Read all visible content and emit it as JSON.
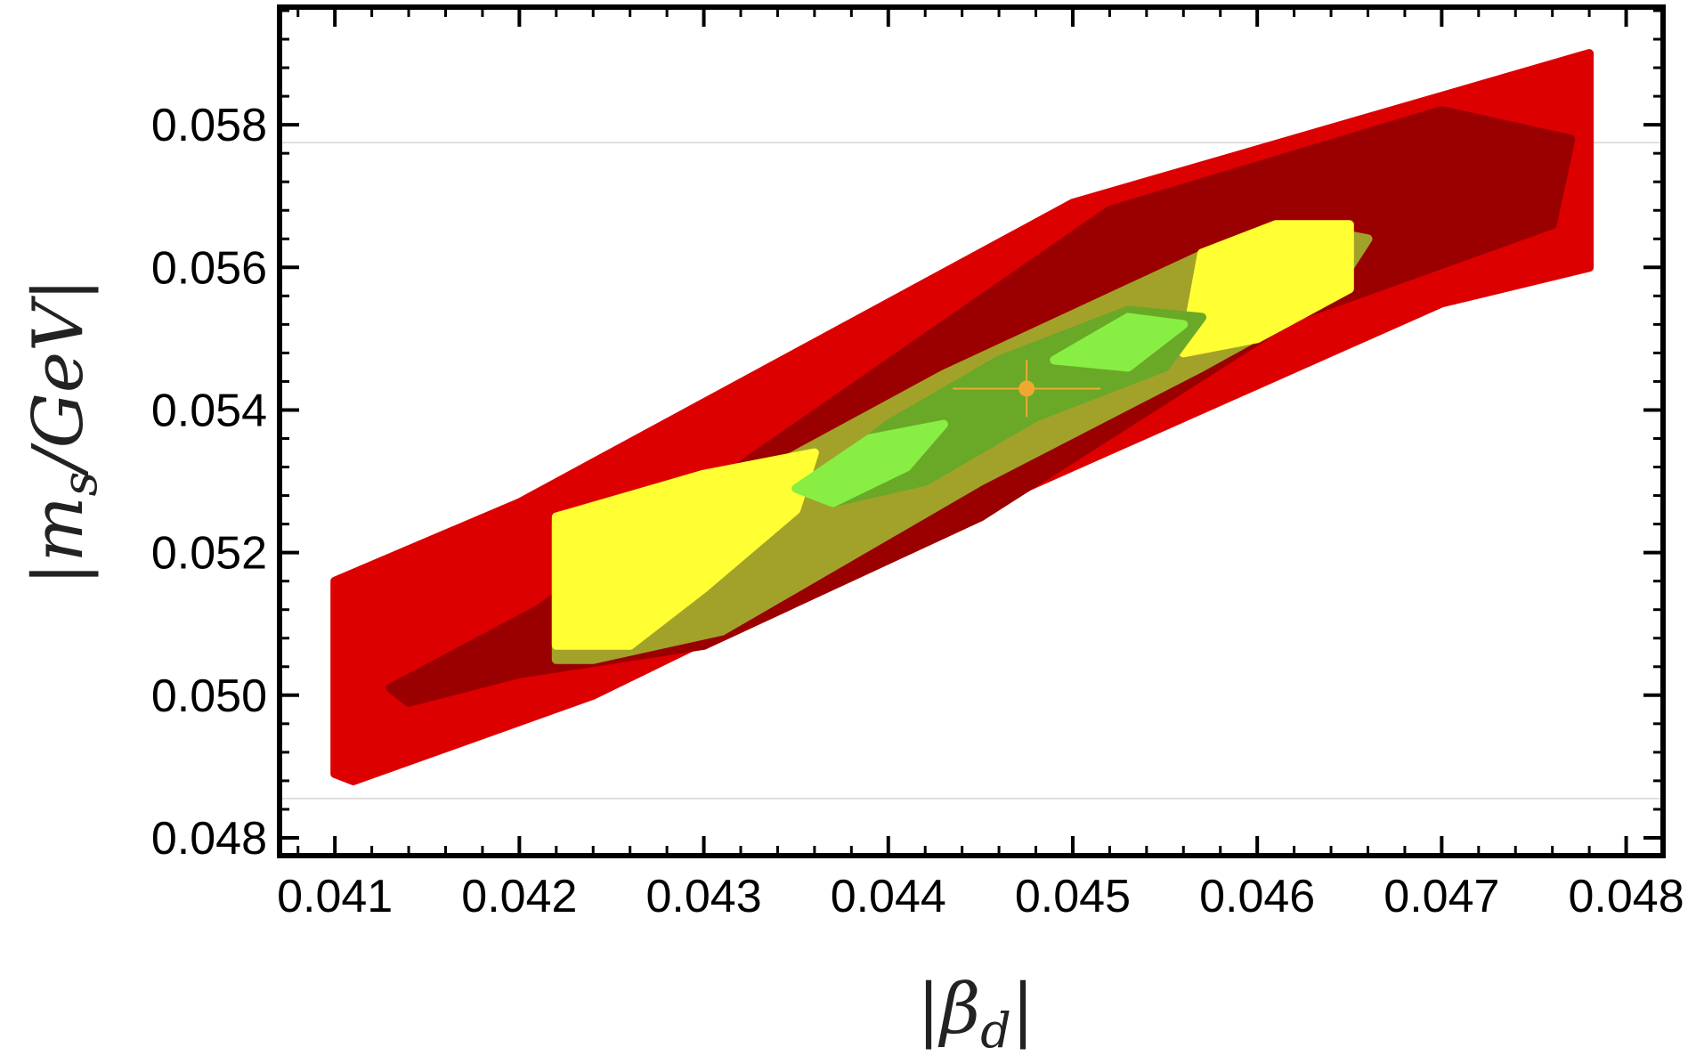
{
  "chart_data": {
    "type": "scatter",
    "xlabel": "|βd|",
    "ylabel": "|ms/GeV|",
    "xlabel_parts": {
      "pre": "|",
      "main": "β",
      "sub": "d",
      "post": "|"
    },
    "ylabel_parts": {
      "pre": "|",
      "main": "m",
      "sub": "s",
      "post": "/GeV|"
    },
    "xlim": [
      0.0407,
      0.0482
    ],
    "ylim": [
      0.04775,
      0.05965
    ],
    "xticks": [
      0.041,
      0.042,
      0.043,
      0.044,
      0.045,
      0.046,
      0.047,
      0.048
    ],
    "xtick_labels": [
      "0.041",
      "0.042",
      "0.043",
      "0.044",
      "0.045",
      "0.046",
      "0.047",
      "0.048"
    ],
    "yticks": [
      0.048,
      0.05,
      0.052,
      0.054,
      0.056,
      0.058
    ],
    "ytick_labels": [
      "0.048",
      "0.050",
      "0.052",
      "0.054",
      "0.056",
      "0.058"
    ],
    "reference_lines_y": [
      0.05775,
      0.04855
    ],
    "grid": false,
    "legend": "none",
    "regions": [
      {
        "color": "#dd0000",
        "polygon": [
          [
            0.041,
            0.0489
          ],
          [
            0.041,
            0.0516
          ],
          [
            0.042,
            0.0527
          ],
          [
            0.045,
            0.0569
          ],
          [
            0.0478,
            0.059
          ],
          [
            0.0478,
            0.056
          ],
          [
            0.047,
            0.0555
          ],
          [
            0.0443,
            0.0524
          ],
          [
            0.0424,
            0.05
          ],
          [
            0.0411,
            0.0488
          ]
        ]
      },
      {
        "color": "#9b0000",
        "polygon": [
          [
            0.0413,
            0.0501
          ],
          [
            0.0421,
            0.0512
          ],
          [
            0.0433,
            0.0534
          ],
          [
            0.0452,
            0.0568
          ],
          [
            0.047,
            0.0582
          ],
          [
            0.0477,
            0.0578
          ],
          [
            0.0476,
            0.0566
          ],
          [
            0.0462,
            0.0553
          ],
          [
            0.0445,
            0.0525
          ],
          [
            0.043,
            0.0507
          ],
          [
            0.042,
            0.0503
          ],
          [
            0.0414,
            0.0499
          ]
        ]
      },
      {
        "color": "#a2a22a",
        "polygon": [
          [
            0.0422,
            0.0505
          ],
          [
            0.0422,
            0.0524
          ],
          [
            0.0433,
            0.0531
          ],
          [
            0.0443,
            0.0545
          ],
          [
            0.0458,
            0.0563
          ],
          [
            0.0462,
            0.0566
          ],
          [
            0.0466,
            0.0564
          ],
          [
            0.0464,
            0.0556
          ],
          [
            0.0457,
            0.0546
          ],
          [
            0.0445,
            0.053
          ],
          [
            0.0431,
            0.0509
          ],
          [
            0.0424,
            0.0505
          ]
        ]
      },
      {
        "color": "#ffff33",
        "polygon": [
          [
            0.0422,
            0.0507
          ],
          [
            0.0422,
            0.0525
          ],
          [
            0.043,
            0.0531
          ],
          [
            0.0436,
            0.0534
          ],
          [
            0.0435,
            0.0526
          ],
          [
            0.043,
            0.0515
          ],
          [
            0.0426,
            0.0507
          ]
        ]
      },
      {
        "color": "#ffff33",
        "polygon": [
          [
            0.0456,
            0.0548
          ],
          [
            0.0457,
            0.0562
          ],
          [
            0.0461,
            0.0566
          ],
          [
            0.0465,
            0.0566
          ],
          [
            0.0465,
            0.0557
          ],
          [
            0.046,
            0.055
          ]
        ]
      },
      {
        "color": "#6aa828",
        "polygon": [
          [
            0.0436,
            0.053
          ],
          [
            0.044,
            0.0538
          ],
          [
            0.0446,
            0.0547
          ],
          [
            0.0453,
            0.0554
          ],
          [
            0.0457,
            0.0553
          ],
          [
            0.0455,
            0.0546
          ],
          [
            0.0448,
            0.0539
          ],
          [
            0.0442,
            0.053
          ],
          [
            0.0437,
            0.0527
          ]
        ]
      },
      {
        "color": "#88ee44",
        "polygon": [
          [
            0.0435,
            0.0529
          ],
          [
            0.0439,
            0.0536
          ],
          [
            0.0443,
            0.0538
          ],
          [
            0.0441,
            0.0532
          ],
          [
            0.0437,
            0.0527
          ]
        ]
      },
      {
        "color": "#88ee44",
        "polygon": [
          [
            0.0449,
            0.0547
          ],
          [
            0.0453,
            0.0553
          ],
          [
            0.0456,
            0.0552
          ],
          [
            0.0453,
            0.0546
          ]
        ]
      }
    ],
    "central_point": {
      "x": 0.04475,
      "y": 0.0543,
      "xerr": 0.0004,
      "yerr": 0.0004,
      "color": "#f0a830"
    }
  }
}
